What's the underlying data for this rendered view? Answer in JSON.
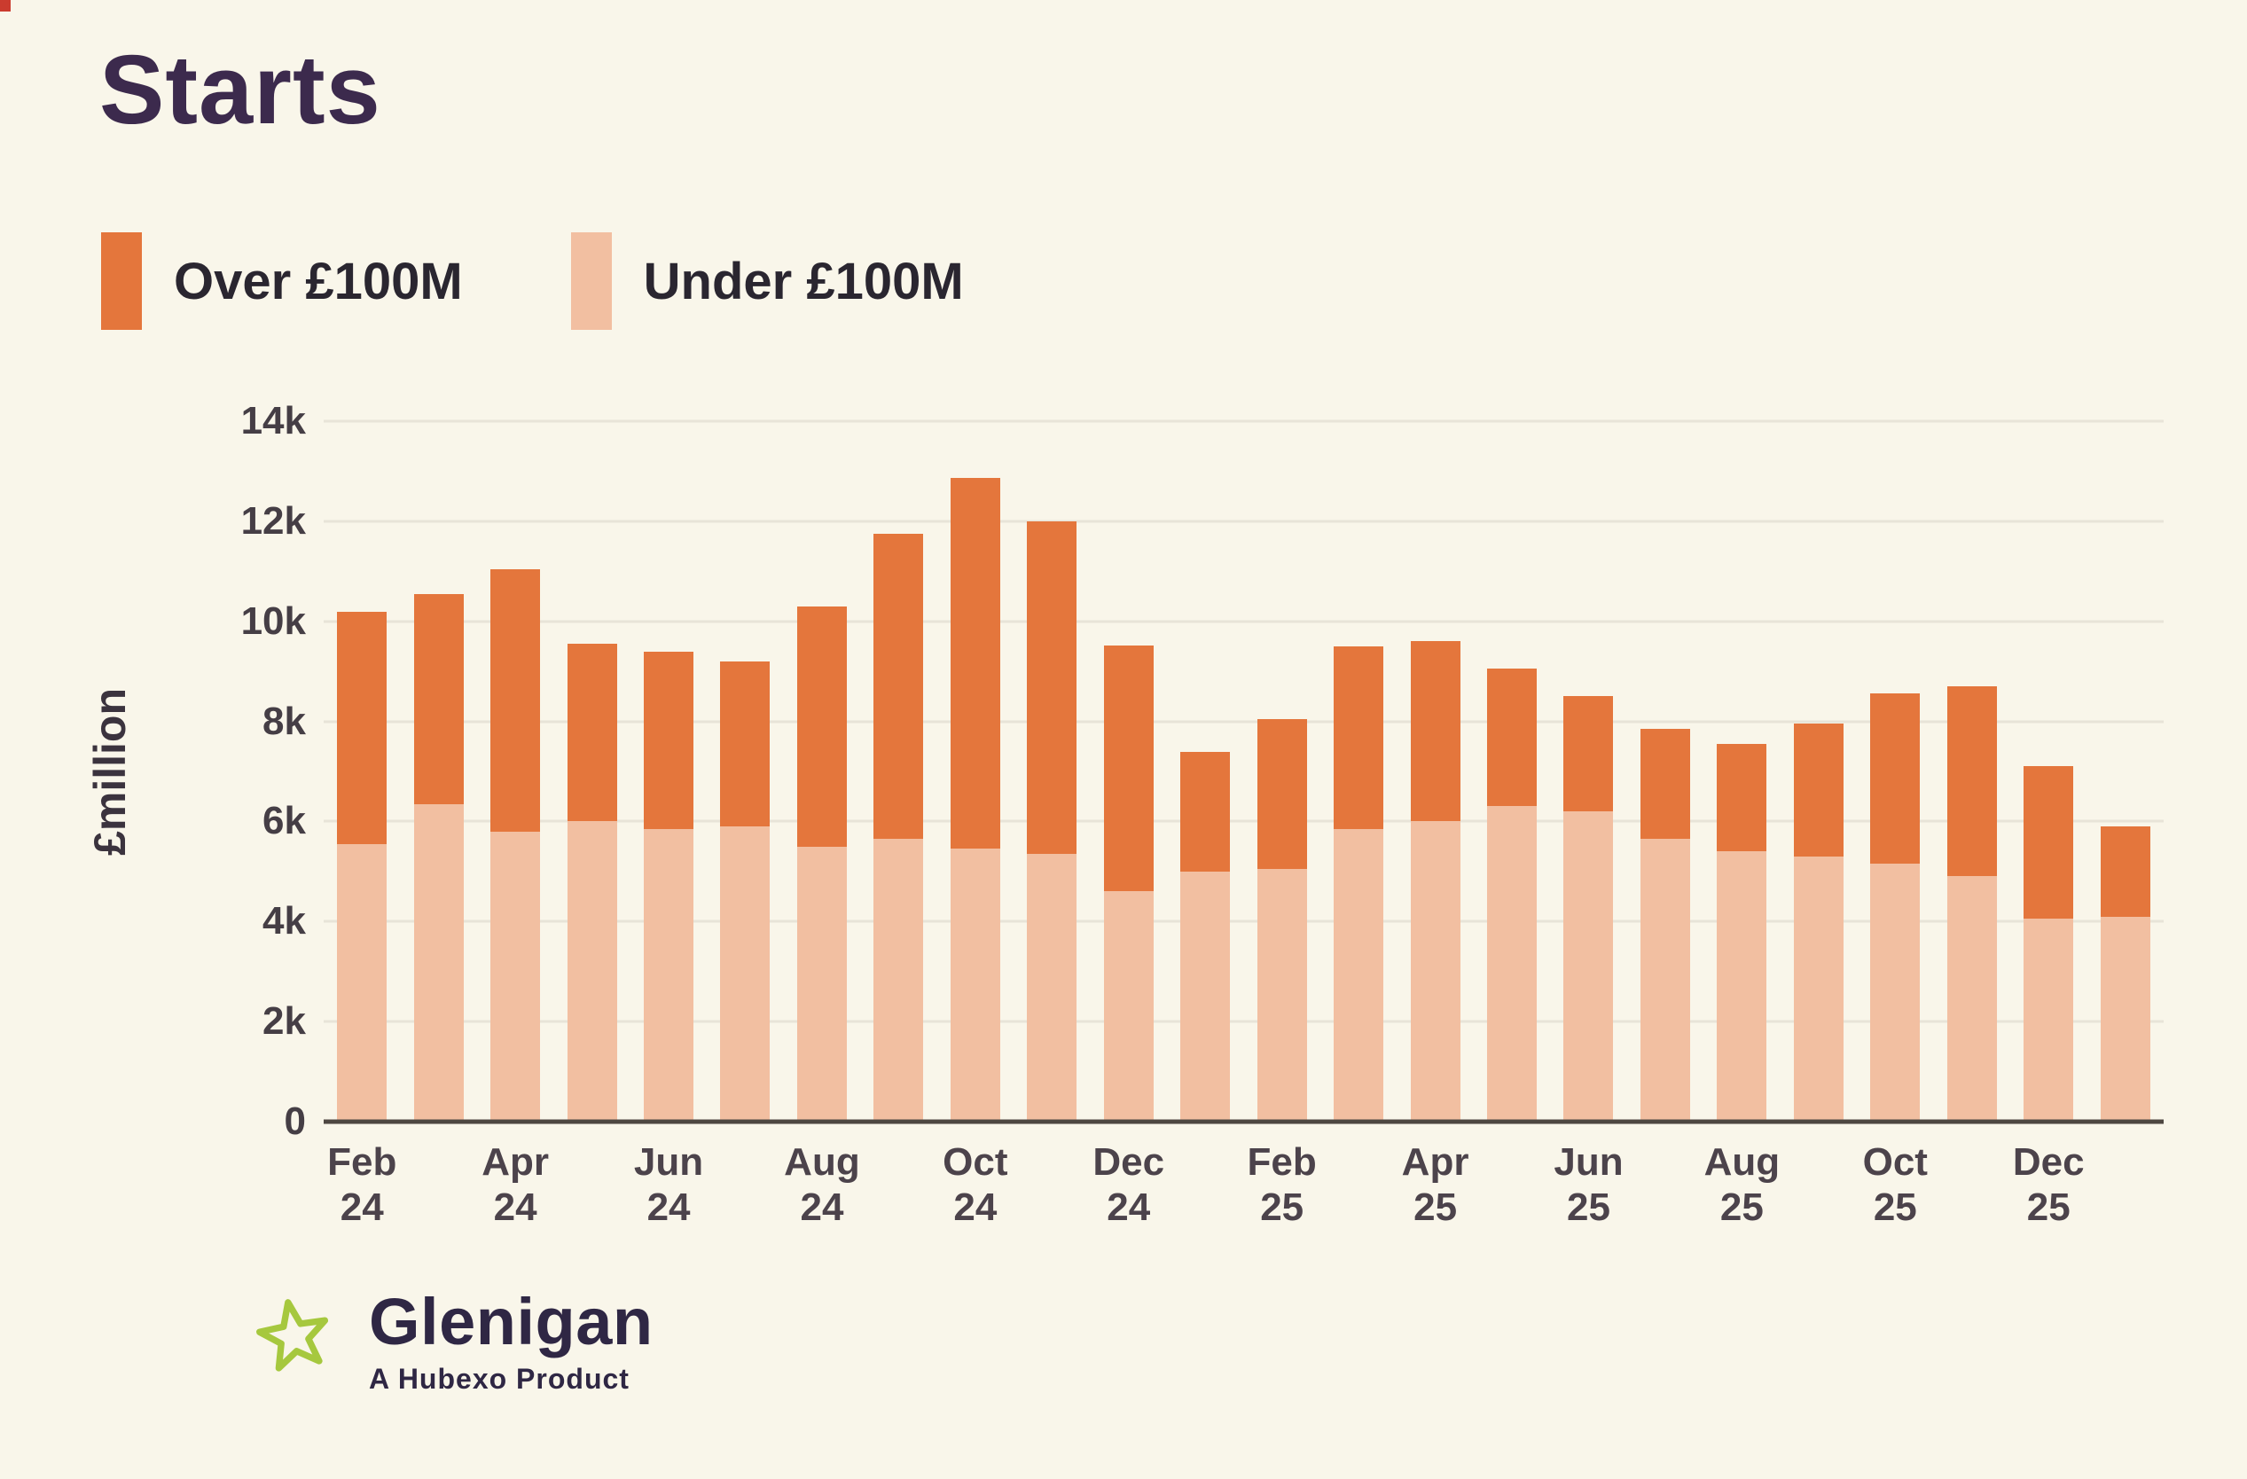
{
  "colors": {
    "background": "#f9f6ea",
    "over_100m": "#e4763c",
    "under_100m": "#f2bfa1",
    "gridline": "#e8e4d8",
    "axis_line": "#4e4741",
    "title": "#3c2a4d",
    "star_green": "#a6c83e"
  },
  "legend": [
    {
      "label": "Over £100M",
      "color": "#e4763c"
    },
    {
      "label": "Under £100M",
      "color": "#f2bfa1"
    }
  ],
  "logo": {
    "name": "Glenigan",
    "tagline": "A Hubexo Product"
  },
  "chart_data": {
    "type": "bar",
    "stacked": true,
    "title": "Starts",
    "ylabel": "£million",
    "xlabel": "",
    "ylim": [
      0,
      14000
    ],
    "grid": "horizontal",
    "legend_position": "top-left",
    "categories": [
      "Feb 24",
      "Mar 24",
      "Apr 24",
      "May 24",
      "Jun 24",
      "Jul 24",
      "Aug 24",
      "Sep 24",
      "Oct 24",
      "Nov 24",
      "Dec 24",
      "Jan 25",
      "Feb 25",
      "Mar 25",
      "Apr 25",
      "May 25",
      "Jun 25",
      "Jul 25",
      "Aug 25",
      "Sep 25",
      "Oct 25",
      "Nov 25",
      "Dec 25",
      "Jan 26"
    ],
    "x_tick_labels": [
      "Feb 24",
      "Apr 24",
      "Jun 24",
      "Aug 24",
      "Oct 24",
      "Dec 24",
      "Feb 25",
      "Apr 25",
      "Jun 25",
      "Aug 25",
      "Oct 25",
      "Dec 25"
    ],
    "y_ticks": [
      "0",
      "2k",
      "4k",
      "6k",
      "8k",
      "10k",
      "12k",
      "14k"
    ],
    "y_tick_values": [
      0,
      2000,
      4000,
      6000,
      8000,
      10000,
      12000,
      14000
    ],
    "series": [
      {
        "name": "Under £100M",
        "color": "#f2bfa1",
        "values": [
          5550,
          6350,
          5800,
          6000,
          5850,
          5900,
          5500,
          5650,
          5450,
          5350,
          4600,
          5000,
          5050,
          5850,
          6000,
          6300,
          6200,
          5650,
          5400,
          5300,
          5150,
          4900,
          4050,
          4100
        ]
      },
      {
        "name": "Over £100M",
        "color": "#e4763c",
        "values": [
          4650,
          4200,
          5250,
          3550,
          3550,
          3300,
          4800,
          6100,
          7400,
          6650,
          4900,
          2400,
          3000,
          3650,
          3600,
          2750,
          2300,
          2200,
          2150,
          2650,
          3400,
          3800,
          3050,
          1800
        ]
      }
    ],
    "totals": [
      10200,
      10550,
      11050,
      9550,
      9400,
      9200,
      10300,
      11750,
      12850,
      12000,
      9500,
      7400,
      8050,
      9500,
      9600,
      9050,
      8500,
      7850,
      7550,
      7950,
      8550,
      8700,
      7100,
      5900
    ]
  }
}
